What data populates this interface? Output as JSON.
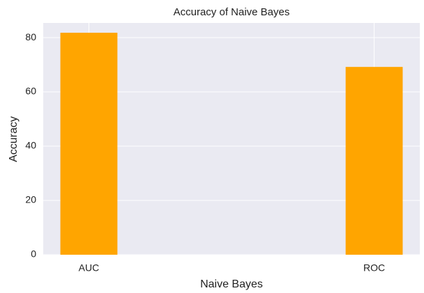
{
  "chart_data": {
    "type": "bar",
    "title": "Accuracy of Naive Bayes",
    "xlabel": "Naive Bayes",
    "ylabel": "Accuracy",
    "categories": [
      "AUC",
      "ROC"
    ],
    "values": [
      81.8,
      69.2
    ],
    "color": "#ffa500",
    "ylim": [
      0,
      85.4
    ],
    "yticks": [
      0,
      20,
      40,
      60,
      80
    ],
    "grid": true
  }
}
